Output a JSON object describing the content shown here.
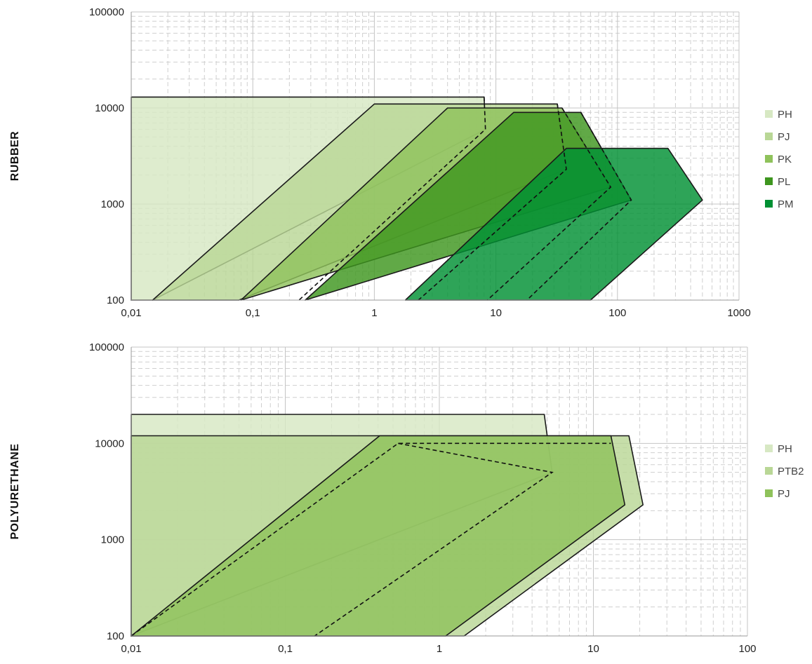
{
  "chart_data": [
    {
      "type": "area",
      "row_label": "RUBBER",
      "x_scale": "log",
      "y_scale": "log",
      "xlim": [
        0.01,
        1000
      ],
      "ylim": [
        100,
        100000
      ],
      "x_tick_labels": [
        "0,01",
        "0,1",
        "1",
        "10",
        "100",
        "1000"
      ],
      "y_tick_labels": [
        "100",
        "1000",
        "10000",
        "100000"
      ],
      "grid": true,
      "legend_position": "right",
      "series": [
        {
          "name": "PH",
          "color": "#d7e8c3",
          "points": [
            [
              0.01,
              13000
            ],
            [
              8,
              13000
            ],
            [
              8.2,
              6000
            ],
            [
              0.015,
              100
            ],
            [
              0.01,
              100
            ]
          ],
          "dashed_edge": [
            [
              8,
              13000
            ],
            [
              8.2,
              6000
            ],
            [
              0.24,
              100
            ]
          ]
        },
        {
          "name": "PJ",
          "color": "#b9d796",
          "points": [
            [
              1,
              11000
            ],
            [
              32,
              11000
            ],
            [
              38,
              2300
            ],
            [
              0.077,
              100
            ],
            [
              0.015,
              100
            ]
          ],
          "dashed_edge": [
            [
              32,
              11000
            ],
            [
              38,
              2300
            ],
            [
              2.3,
              100
            ]
          ]
        },
        {
          "name": "PK",
          "color": "#8fc25b",
          "points": [
            [
              4,
              10000
            ],
            [
              35,
              10000
            ],
            [
              88,
              1500
            ],
            [
              0.08,
              100
            ]
          ],
          "dashed_edge": [
            [
              35,
              10000
            ],
            [
              88,
              1500
            ],
            [
              8.5,
              100
            ]
          ]
        },
        {
          "name": "PL",
          "color": "#3e961f",
          "points": [
            [
              14,
              9000
            ],
            [
              50,
              9000
            ],
            [
              130,
              1100
            ],
            [
              0.27,
              100
            ]
          ],
          "dashed_edge": [
            [
              50,
              9000
            ],
            [
              130,
              1100
            ],
            [
              18,
              100
            ]
          ]
        },
        {
          "name": "PM",
          "color": "#009033",
          "points": [
            [
              38,
              3800
            ],
            [
              260,
              3800
            ],
            [
              500,
              1100
            ],
            [
              60,
              100
            ],
            [
              1.8,
              100
            ]
          ],
          "dashed_edge": []
        }
      ]
    },
    {
      "type": "area",
      "row_label": "POLYURETHANE",
      "x_scale": "log",
      "y_scale": "log",
      "xlim": [
        0.01,
        100
      ],
      "ylim": [
        100,
        100000
      ],
      "x_tick_labels": [
        "0,01",
        "0,1",
        "1",
        "10",
        "100"
      ],
      "y_tick_labels": [
        "100",
        "1000",
        "10000",
        "100000"
      ],
      "grid": true,
      "legend_position": "right",
      "series": [
        {
          "name": "PH",
          "color": "#d7e8c3",
          "points": [
            [
              0.01,
              20000
            ],
            [
              4.8,
              20000
            ],
            [
              5.4,
              5000
            ],
            [
              0.01,
              100
            ]
          ],
          "dashed_edge": [
            [
              0.54,
              10000
            ],
            [
              5.4,
              5000
            ],
            [
              0.155,
              100
            ]
          ]
        },
        {
          "name": "PTB2",
          "color": "#b9d796",
          "points": [
            [
              0.01,
              12000
            ],
            [
              17,
              12000
            ],
            [
              21,
              2300
            ],
            [
              1.45,
              100
            ],
            [
              0.01,
              100
            ]
          ],
          "dashed_edge": []
        },
        {
          "name": "PJ",
          "color": "#8fc25b",
          "points": [
            [
              0.41,
              12000
            ],
            [
              13,
              12000
            ],
            [
              16,
              2300
            ],
            [
              1.1,
              100
            ],
            [
              0.01,
              100
            ]
          ],
          "dashed_edge": [
            [
              0.01,
              100
            ],
            [
              0.54,
              10000
            ],
            [
              13,
              10000
            ]
          ]
        }
      ]
    }
  ]
}
